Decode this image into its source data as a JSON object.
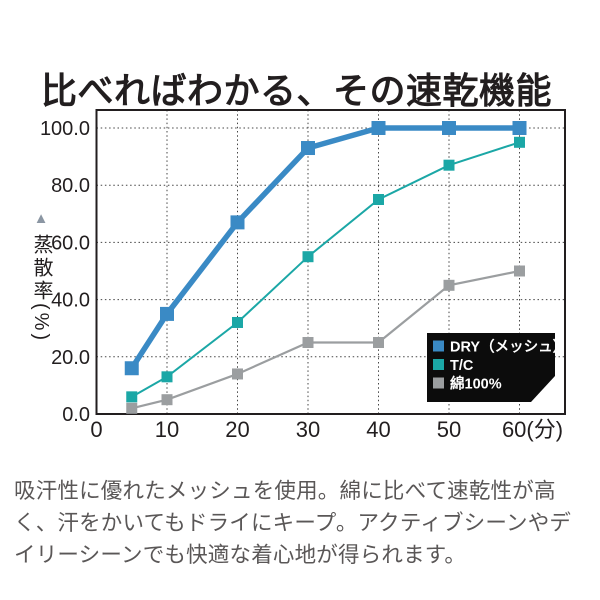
{
  "title": "比べればわかる、その速乾機能",
  "caption": "吸汗性に優れたメッシュを使用。綿に比べて速乾性が高く、汗をかいてもドライにキープ。アクティブシーンやデイリーシーンでも快適な着心地が得られます。",
  "y_axis_marker": "▲",
  "chart_data": {
    "type": "line",
    "x": [
      5,
      10,
      20,
      30,
      40,
      50,
      60
    ],
    "x_axis": {
      "ticks": [
        0,
        10,
        20,
        30,
        40,
        50,
        60
      ],
      "tick_labels": [
        "0",
        "10",
        "20",
        "30",
        "40",
        "50",
        "60(分)"
      ],
      "min": 0,
      "max": 66.5,
      "unit": "分"
    },
    "y_axis": {
      "ticks": [
        0,
        20,
        40,
        60,
        80,
        100
      ],
      "tick_labels": [
        "0.0",
        "20.0",
        "40.0",
        "60.0",
        "80.0",
        "100.0"
      ],
      "label": "蒸散率(%)",
      "min": 0,
      "max": 106.3,
      "unit": "%"
    },
    "grid": {
      "x_lines": [
        10,
        20,
        30,
        40,
        50,
        60
      ],
      "y_lines": [
        20,
        40,
        60,
        80,
        100
      ],
      "style": "dotted"
    },
    "series": [
      {
        "key": "dry-mesh",
        "name": "DRY（メッシュ）",
        "color": "#3a8ac5",
        "values": [
          16,
          35,
          67,
          93,
          100,
          100,
          100
        ]
      },
      {
        "key": "tc",
        "name": "T/C",
        "color": "#1ba7a6",
        "values": [
          6,
          13,
          32,
          55,
          75,
          87,
          95
        ]
      },
      {
        "key": "cotton-100",
        "name": "綿100%",
        "color": "#9b9ea0",
        "values": [
          2,
          5,
          14,
          25,
          25,
          45,
          50
        ]
      }
    ],
    "legend": {
      "position": "bottom-right",
      "background": "#0c0c0c",
      "text_color": "#ffffff"
    },
    "axis_color": "#221e1f",
    "grid_color": "#454545"
  }
}
